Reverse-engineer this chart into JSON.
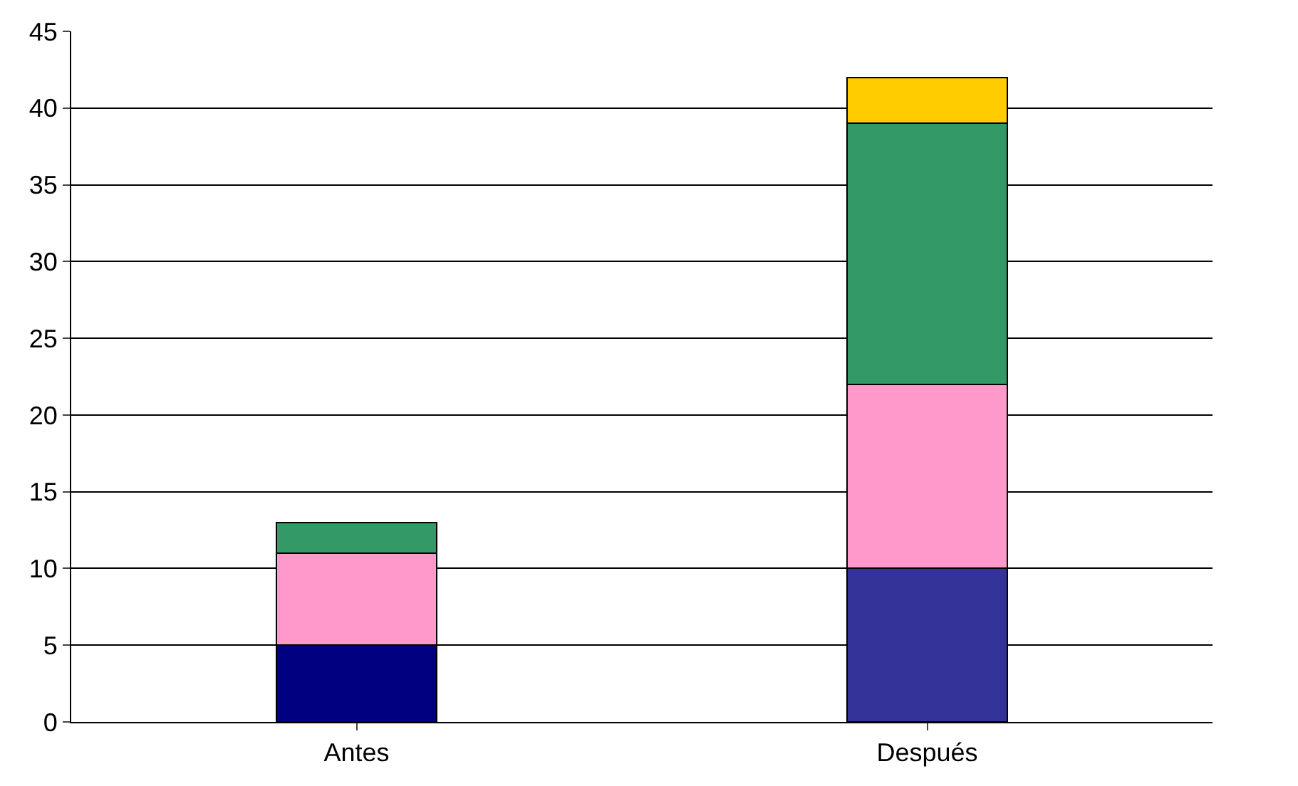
{
  "chart_data": {
    "type": "bar",
    "stacked": true,
    "categories": [
      "Antes",
      "Después"
    ],
    "series": [
      {
        "color": "#000080",
        "colors": [
          "#000080",
          "#333399"
        ],
        "values": [
          5,
          10
        ]
      },
      {
        "color": "#ff99cc",
        "values": [
          6,
          12
        ]
      },
      {
        "color": "#339966",
        "values": [
          2,
          17
        ]
      },
      {
        "color": "#ffcc00",
        "values": [
          null,
          3
        ]
      }
    ],
    "ylim": [
      0,
      45
    ],
    "yticks": [
      0,
      5,
      10,
      15,
      20,
      25,
      30,
      35,
      40,
      45
    ],
    "grid": "y"
  }
}
